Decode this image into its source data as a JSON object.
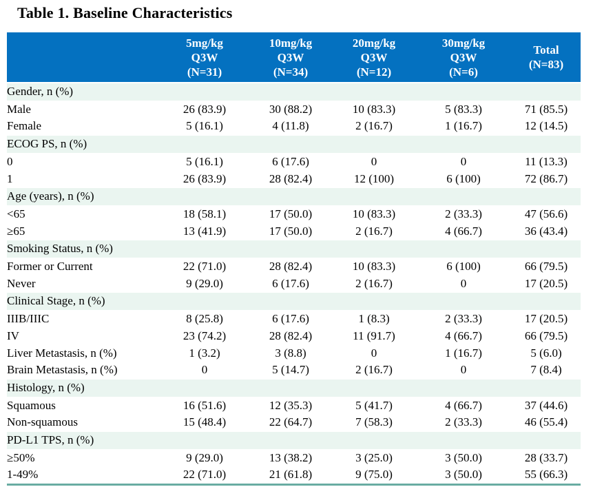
{
  "title": "Table 1. Baseline Characteristics",
  "colors": {
    "header_bg": "#0471c0",
    "header_text": "#ffffff",
    "section_row_bg": "#eaf5f0",
    "bottom_border": "#68aca2",
    "body_text": "#000000"
  },
  "chart_data": {
    "type": "table",
    "title": "Table 1. Baseline Characteristics",
    "columns": [
      "",
      "5mg/kg Q3W (N=31)",
      "10mg/kg Q3W (N=34)",
      "20mg/kg Q3W (N=12)",
      "30mg/kg Q3W (N=6)",
      "Total (N=83)"
    ],
    "header_columns": [
      {
        "lines": [
          "5mg/kg",
          "Q3W",
          "(N=31)"
        ]
      },
      {
        "lines": [
          "10mg/kg",
          "Q3W",
          "(N=34)"
        ]
      },
      {
        "lines": [
          "20mg/kg",
          "Q3W",
          "(N=12)"
        ]
      },
      {
        "lines": [
          "30mg/kg",
          "Q3W",
          "(N=6)"
        ]
      },
      {
        "lines": [
          "Total",
          "(N=83)"
        ]
      }
    ],
    "rows": [
      {
        "type": "section",
        "label": "Gender, n (%)",
        "values": [
          "",
          "",
          "",
          "",
          ""
        ]
      },
      {
        "type": "sub",
        "label": "Male",
        "values": [
          "26 (83.9)",
          "30 (88.2)",
          "10 (83.3)",
          "5 (83.3)",
          "71 (85.5)"
        ]
      },
      {
        "type": "sub",
        "label": "Female",
        "values": [
          "5 (16.1)",
          "4 (11.8)",
          "2 (16.7)",
          "1 (16.7)",
          "12 (14.5)"
        ]
      },
      {
        "type": "section",
        "label": "ECOG PS, n (%)",
        "values": [
          "",
          "",
          "",
          "",
          ""
        ]
      },
      {
        "type": "sub",
        "label": "0",
        "values": [
          "5 (16.1)",
          "6 (17.6)",
          "0",
          "0",
          "11 (13.3)"
        ]
      },
      {
        "type": "sub",
        "label": "1",
        "values": [
          "26 (83.9)",
          "28 (82.4)",
          "12 (100)",
          "6 (100)",
          "72 (86.7)"
        ]
      },
      {
        "type": "section",
        "label": "Age (years), n (%)",
        "values": [
          "",
          "",
          "",
          "",
          ""
        ]
      },
      {
        "type": "sub",
        "label": "<65",
        "values": [
          "18 (58.1)",
          "17 (50.0)",
          "10 (83.3)",
          "2 (33.3)",
          "47 (56.6)"
        ]
      },
      {
        "type": "sub",
        "label": "≥65",
        "values": [
          "13 (41.9)",
          "17 (50.0)",
          "2 (16.7)",
          "4 (66.7)",
          "36 (43.4)"
        ]
      },
      {
        "type": "section",
        "label": "Smoking Status, n (%)",
        "values": [
          "",
          "",
          "",
          "",
          ""
        ]
      },
      {
        "type": "sub",
        "label": "Former or Current",
        "values": [
          "22 (71.0)",
          "28 (82.4)",
          "10 (83.3)",
          "6 (100)",
          "66 (79.5)"
        ]
      },
      {
        "type": "sub",
        "label": "Never",
        "values": [
          "9 (29.0)",
          "6 (17.6)",
          "2 (16.7)",
          "0",
          "17 (20.5)"
        ]
      },
      {
        "type": "section",
        "label": "Clinical Stage, n (%)",
        "values": [
          "",
          "",
          "",
          "",
          ""
        ]
      },
      {
        "type": "sub",
        "label": "IIIB/IIIC",
        "values": [
          "8 (25.8)",
          "6 (17.6)",
          "1 (8.3)",
          "2 (33.3)",
          "17 (20.5)"
        ]
      },
      {
        "type": "sub",
        "label": "IV",
        "values": [
          "23 (74.2)",
          "28 (82.4)",
          "11 (91.7)",
          "4 (66.7)",
          "66 (79.5)"
        ]
      },
      {
        "type": "plain",
        "label": "Liver Metastasis, n (%)",
        "values": [
          "1 (3.2)",
          "3 (8.8)",
          "0",
          "1 (16.7)",
          "5 (6.0)"
        ]
      },
      {
        "type": "plain",
        "label": "Brain Metastasis, n (%)",
        "values": [
          "0",
          "5 (14.7)",
          "2 (16.7)",
          "0",
          "7 (8.4)"
        ]
      },
      {
        "type": "section",
        "label": "Histology, n (%)",
        "values": [
          "",
          "",
          "",
          "",
          ""
        ]
      },
      {
        "type": "sub",
        "label": "Squamous",
        "values": [
          "16 (51.6)",
          "12 (35.3)",
          "5 (41.7)",
          "4 (66.7)",
          "37 (44.6)"
        ]
      },
      {
        "type": "sub",
        "label": "Non-squamous",
        "values": [
          "15 (48.4)",
          "22 (64.7)",
          "7 (58.3)",
          "2 (33.3)",
          "46 (55.4)"
        ]
      },
      {
        "type": "section",
        "label": "PD-L1 TPS, n (%)",
        "values": [
          "",
          "",
          "",
          "",
          ""
        ]
      },
      {
        "type": "sub",
        "label": "≥50%",
        "values": [
          "9 (29.0)",
          "13 (38.2)",
          "3 (25.0)",
          "3 (50.0)",
          "28 (33.7)"
        ]
      },
      {
        "type": "sub",
        "label": "1-49%",
        "values": [
          "22 (71.0)",
          "21 (61.8)",
          "9 (75.0)",
          "3 (50.0)",
          "55 (66.3)"
        ]
      }
    ]
  }
}
